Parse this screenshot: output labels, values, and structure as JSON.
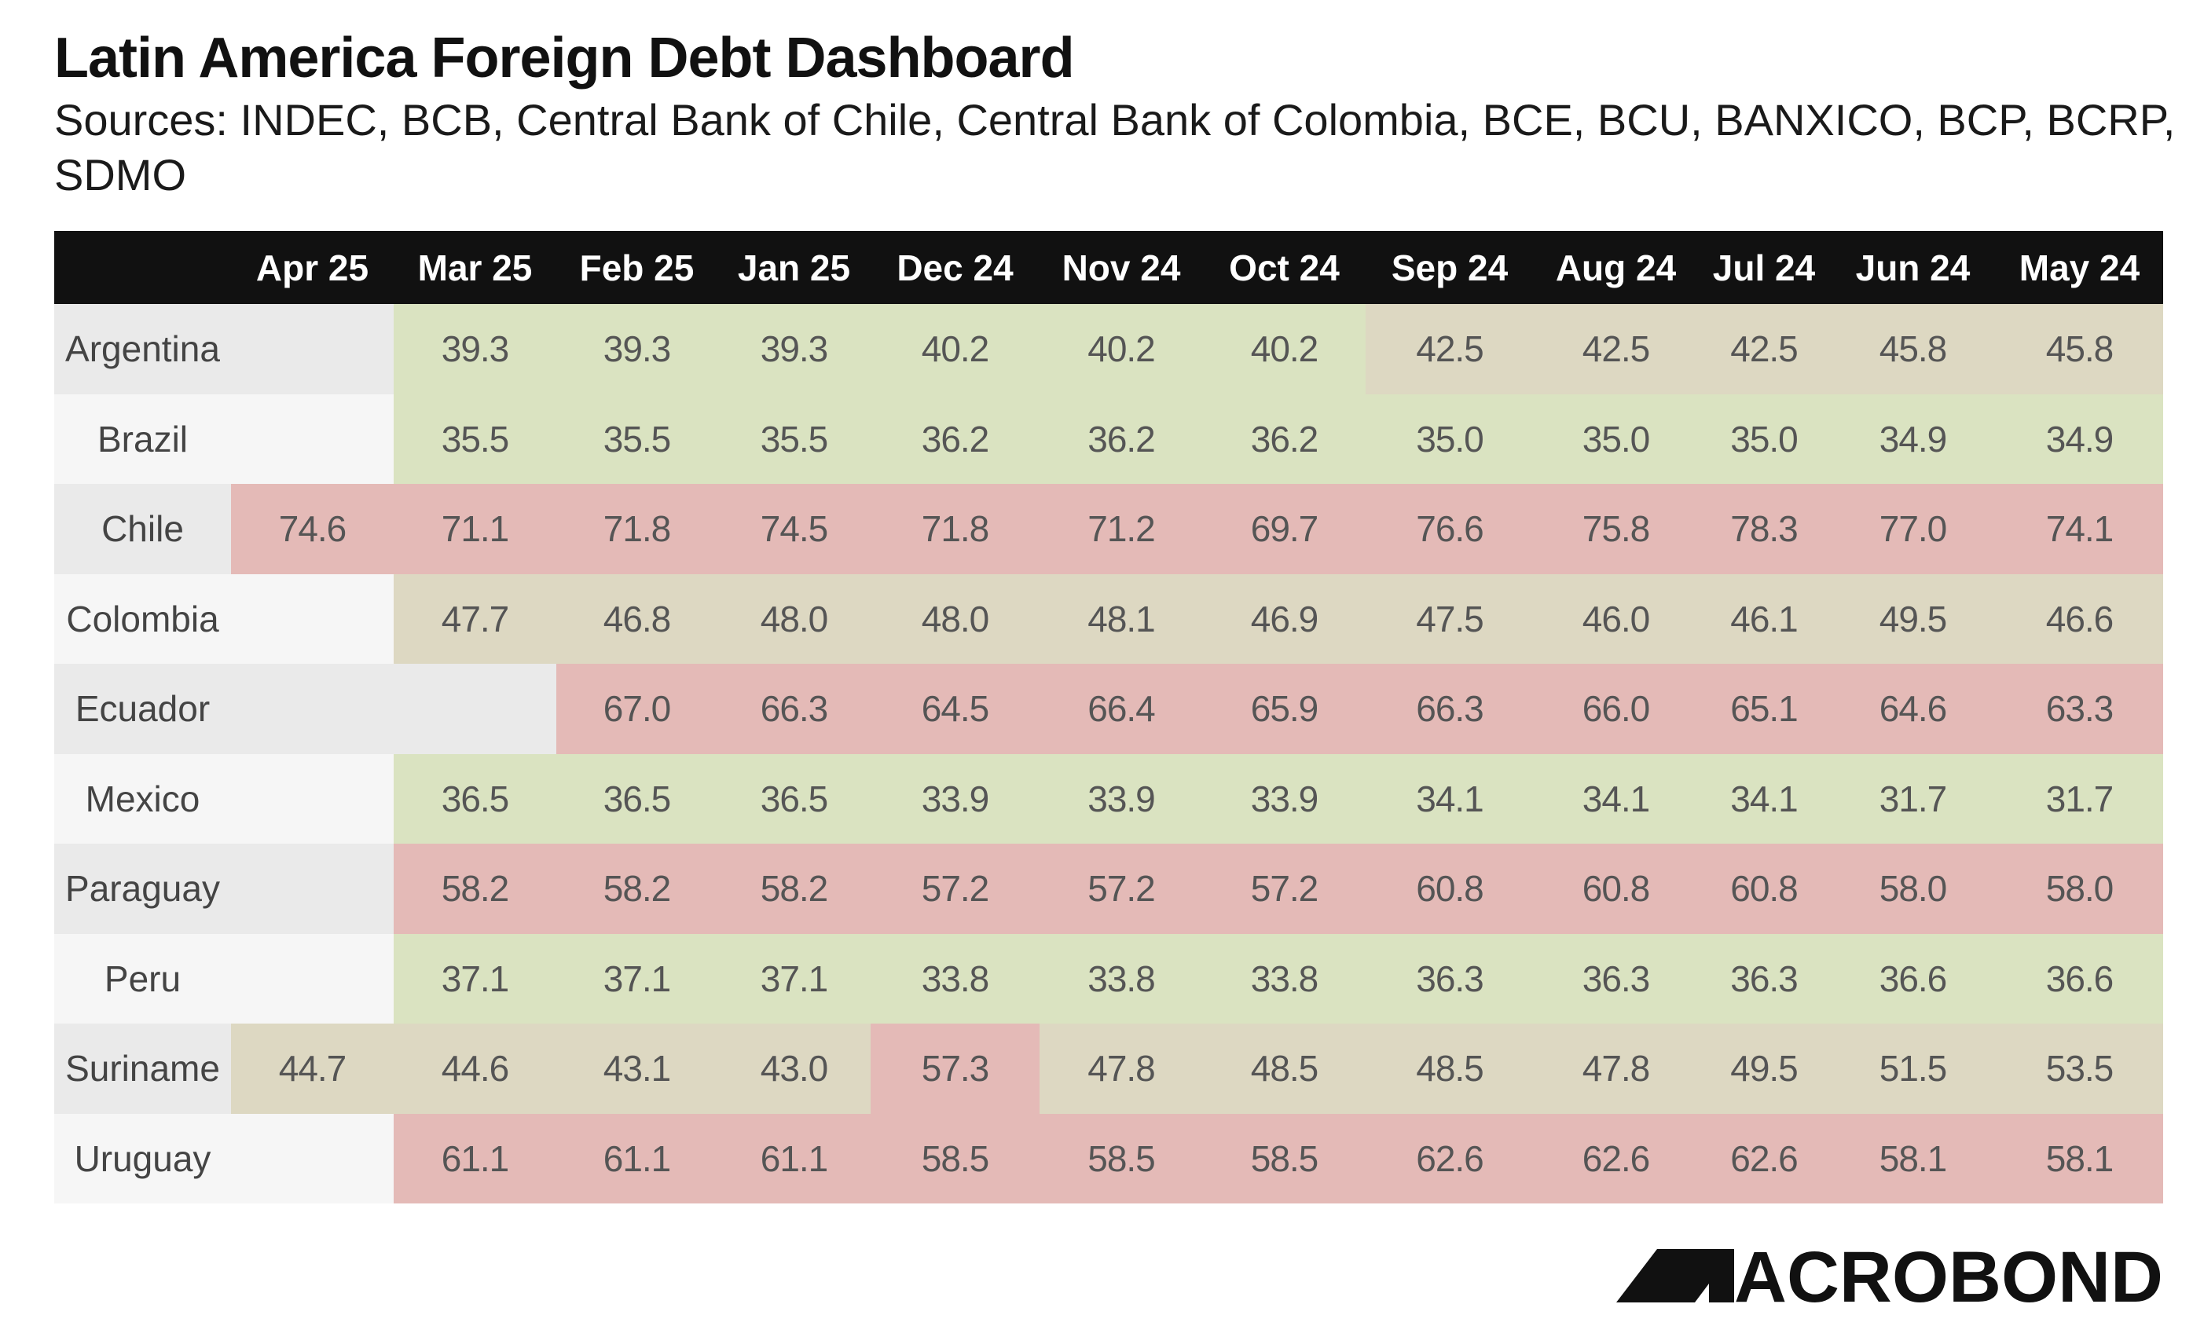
{
  "title": "Latin America Foreign Debt Dashboard",
  "subtitle": "Sources: INDEC, BCB, Central Bank of Chile, Central Bank of Colombia, BCE, BCU, BANXICO, BCP, BCRP, SDMO",
  "logo_text": "MACROBOND",
  "colors": {
    "header_bg": "#111111",
    "low": "#dae3c1",
    "mid": "#ddd8c2",
    "high": "#e4bab7",
    "empty_a": "#eaeaea",
    "empty_b": "#f6f6f6"
  },
  "chart_data": {
    "type": "table",
    "columns": [
      "Apr 25",
      "Mar 25",
      "Feb 25",
      "Jan 25",
      "Dec 24",
      "Nov 24",
      "Oct 24",
      "Sep 24",
      "Aug 24",
      "Jul 24",
      "Jun 24",
      "May 24"
    ],
    "rows": [
      {
        "name": "Argentina",
        "values": [
          "",
          "39.3",
          "39.3",
          "39.3",
          "40.2",
          "40.2",
          "40.2",
          "42.5",
          "42.5",
          "42.5",
          "45.8",
          "45.8"
        ]
      },
      {
        "name": "Brazil",
        "values": [
          "",
          "35.5",
          "35.5",
          "35.5",
          "36.2",
          "36.2",
          "36.2",
          "35.0",
          "35.0",
          "35.0",
          "34.9",
          "34.9"
        ]
      },
      {
        "name": "Chile",
        "values": [
          "74.6",
          "71.1",
          "71.8",
          "74.5",
          "71.8",
          "71.2",
          "69.7",
          "76.6",
          "75.8",
          "78.3",
          "77.0",
          "74.1"
        ]
      },
      {
        "name": "Colombia",
        "values": [
          "",
          "47.7",
          "46.8",
          "48.0",
          "48.0",
          "48.1",
          "46.9",
          "47.5",
          "46.0",
          "46.1",
          "49.5",
          "46.6"
        ]
      },
      {
        "name": "Ecuador",
        "values": [
          "",
          "",
          "67.0",
          "66.3",
          "64.5",
          "66.4",
          "65.9",
          "66.3",
          "66.0",
          "65.1",
          "64.6",
          "63.3"
        ]
      },
      {
        "name": "Mexico",
        "values": [
          "",
          "36.5",
          "36.5",
          "36.5",
          "33.9",
          "33.9",
          "33.9",
          "34.1",
          "34.1",
          "34.1",
          "31.7",
          "31.7"
        ]
      },
      {
        "name": "Paraguay",
        "values": [
          "",
          "58.2",
          "58.2",
          "58.2",
          "57.2",
          "57.2",
          "57.2",
          "60.8",
          "60.8",
          "60.8",
          "58.0",
          "58.0"
        ]
      },
      {
        "name": "Peru",
        "values": [
          "",
          "37.1",
          "37.1",
          "37.1",
          "33.8",
          "33.8",
          "33.8",
          "36.3",
          "36.3",
          "36.3",
          "36.6",
          "36.6"
        ]
      },
      {
        "name": "Suriname",
        "values": [
          "44.7",
          "44.6",
          "43.1",
          "43.0",
          "57.3",
          "47.8",
          "48.5",
          "48.5",
          "47.8",
          "49.5",
          "51.5",
          "53.5"
        ]
      },
      {
        "name": "Uruguay",
        "values": [
          "",
          "61.1",
          "61.1",
          "61.1",
          "58.5",
          "58.5",
          "58.5",
          "62.6",
          "62.6",
          "62.6",
          "58.1",
          "58.1"
        ]
      }
    ]
  }
}
